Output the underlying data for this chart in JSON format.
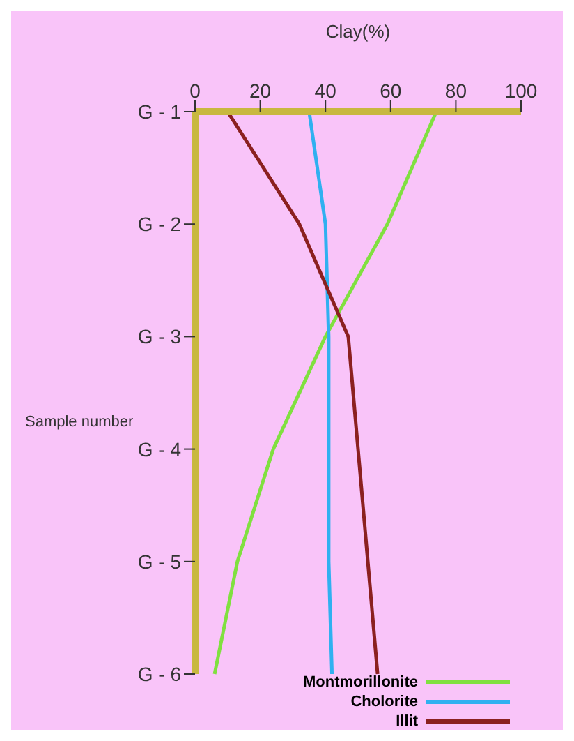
{
  "chart_data": {
    "type": "line",
    "orientation": "horizontal",
    "xlabel": "Clay(%)",
    "ylabel": "Sample number",
    "categories": [
      "G - 1",
      "G - 2",
      "G - 3",
      "G - 4",
      "G - 5",
      "G - 6"
    ],
    "xlim": [
      0,
      100
    ],
    "xticks": [
      0,
      20,
      40,
      60,
      80,
      100
    ],
    "series": [
      {
        "name": "Montmorillonite",
        "color": "#80e040",
        "values": [
          74,
          59,
          40,
          24,
          13,
          6
        ]
      },
      {
        "name": "Cholorite",
        "color": "#30b0f0",
        "values": [
          35,
          40,
          41,
          41,
          41,
          42
        ]
      },
      {
        "name": "Illit",
        "color": "#8b2020",
        "values": [
          10,
          32,
          47,
          50,
          53,
          56
        ]
      }
    ],
    "legend": "bottom right",
    "marker": "none",
    "line_style": "solid"
  }
}
